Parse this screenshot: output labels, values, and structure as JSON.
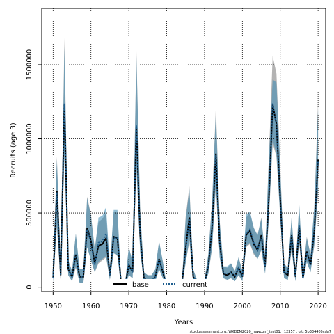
{
  "chart_data": {
    "type": "line",
    "xlabel": "Years",
    "ylabel": "Recruits (age 3)",
    "xlim": [
      1947,
      2022
    ],
    "ylim": [
      -30000,
      1880000
    ],
    "x_ticks": [
      1950,
      1960,
      1970,
      1980,
      1990,
      2000,
      2010,
      2020
    ],
    "y_ticks": [
      0,
      500000,
      1000000,
      1500000
    ],
    "x_tick_labels": [
      "1950",
      "1960",
      "1970",
      "1980",
      "1990",
      "2000",
      "2010",
      "2020"
    ],
    "y_tick_labels": [
      "0",
      "500000",
      "1000000",
      "1500000"
    ],
    "grid": "dotted",
    "legend_position": "bottom-center",
    "x": [
      1950,
      1951,
      1952,
      1953,
      1954,
      1955,
      1956,
      1957,
      1958,
      1959,
      1960,
      1961,
      1962,
      1963,
      1964,
      1965,
      1966,
      1967,
      1968,
      1969,
      1970,
      1971,
      1972,
      1973,
      1974,
      1975,
      1976,
      1977,
      1978,
      1979,
      1980,
      1981,
      1982,
      1983,
      1984,
      1985,
      1986,
      1987,
      1988,
      1989,
      1990,
      1991,
      1992,
      1993,
      1994,
      1995,
      1996,
      1997,
      1998,
      1999,
      2000,
      2001,
      2002,
      2003,
      2004,
      2005,
      2006,
      2007,
      2008,
      2009,
      2010,
      2011,
      2012,
      2013,
      2014,
      2015,
      2016,
      2017,
      2018,
      2019,
      2020
    ],
    "series": [
      {
        "name": "base",
        "color": "#000000",
        "style": "solid",
        "values": [
          60000,
          650000,
          80000,
          1230000,
          120000,
          70000,
          220000,
          70000,
          70000,
          400000,
          310000,
          160000,
          280000,
          290000,
          330000,
          80000,
          340000,
          330000,
          10000,
          10000,
          150000,
          100000,
          1080000,
          350000,
          60000,
          40000,
          40000,
          70000,
          190000,
          100000,
          5000,
          5000,
          10000,
          5000,
          10000,
          260000,
          470000,
          70000,
          30000,
          20000,
          30000,
          140000,
          400000,
          900000,
          300000,
          90000,
          80000,
          100000,
          70000,
          130000,
          70000,
          350000,
          380000,
          290000,
          250000,
          350000,
          140000,
          600000,
          1230000,
          1100000,
          600000,
          100000,
          80000,
          350000,
          70000,
          410000,
          60000,
          240000,
          150000,
          380000,
          860000
        ],
        "band_low": [
          30000,
          400000,
          40000,
          880000,
          80000,
          40000,
          130000,
          30000,
          30000,
          270000,
          180000,
          100000,
          160000,
          180000,
          200000,
          50000,
          230000,
          210000,
          5000,
          5000,
          80000,
          60000,
          800000,
          240000,
          40000,
          20000,
          20000,
          40000,
          120000,
          60000,
          2000,
          2000,
          5000,
          2000,
          5000,
          160000,
          310000,
          40000,
          15000,
          10000,
          15000,
          90000,
          260000,
          680000,
          200000,
          60000,
          50000,
          60000,
          40000,
          80000,
          40000,
          270000,
          290000,
          220000,
          190000,
          250000,
          90000,
          460000,
          970000,
          880000,
          470000,
          60000,
          50000,
          250000,
          40000,
          300000,
          40000,
          170000,
          100000,
          280000,
          650000
        ],
        "band_high": [
          100000,
          880000,
          140000,
          1680000,
          180000,
          110000,
          360000,
          120000,
          120000,
          610000,
          490000,
          260000,
          440000,
          460000,
          500000,
          130000,
          510000,
          500000,
          20000,
          20000,
          270000,
          170000,
          1590000,
          520000,
          100000,
          80000,
          80000,
          120000,
          310000,
          170000,
          10000,
          10000,
          20000,
          10000,
          20000,
          470000,
          680000,
          120000,
          50000,
          40000,
          50000,
          220000,
          580000,
          1220000,
          450000,
          140000,
          130000,
          160000,
          110000,
          200000,
          110000,
          470000,
          500000,
          400000,
          350000,
          470000,
          220000,
          880000,
          1560000,
          1440000,
          820000,
          160000,
          120000,
          470000,
          110000,
          560000,
          100000,
          340000,
          220000,
          540000,
          1260000
        ]
      },
      {
        "name": "current",
        "color": "#1f5f8f",
        "style": "dotted",
        "values": [
          60000,
          640000,
          80000,
          1240000,
          120000,
          70000,
          220000,
          70000,
          70000,
          390000,
          300000,
          150000,
          300000,
          310000,
          360000,
          80000,
          330000,
          330000,
          10000,
          10000,
          150000,
          100000,
          1090000,
          340000,
          60000,
          40000,
          40000,
          70000,
          190000,
          100000,
          5000,
          5000,
          10000,
          5000,
          10000,
          250000,
          460000,
          70000,
          30000,
          20000,
          30000,
          140000,
          400000,
          890000,
          300000,
          90000,
          90000,
          100000,
          70000,
          130000,
          70000,
          360000,
          390000,
          300000,
          250000,
          340000,
          140000,
          600000,
          1240000,
          1090000,
          590000,
          100000,
          90000,
          350000,
          70000,
          420000,
          60000,
          230000,
          150000,
          390000,
          850000
        ],
        "band_low": [
          30000,
          420000,
          40000,
          900000,
          80000,
          40000,
          140000,
          30000,
          30000,
          270000,
          180000,
          100000,
          170000,
          190000,
          210000,
          50000,
          230000,
          210000,
          5000,
          5000,
          80000,
          60000,
          820000,
          240000,
          40000,
          20000,
          20000,
          40000,
          120000,
          60000,
          2000,
          2000,
          5000,
          2000,
          5000,
          160000,
          320000,
          40000,
          15000,
          10000,
          15000,
          90000,
          270000,
          700000,
          200000,
          60000,
          50000,
          60000,
          40000,
          80000,
          40000,
          280000,
          300000,
          230000,
          190000,
          250000,
          90000,
          480000,
          990000,
          900000,
          480000,
          60000,
          50000,
          260000,
          40000,
          310000,
          40000,
          170000,
          100000,
          290000,
          660000
        ],
        "band_high": [
          100000,
          860000,
          130000,
          1620000,
          180000,
          110000,
          360000,
          120000,
          120000,
          600000,
          480000,
          250000,
          470000,
          480000,
          540000,
          130000,
          520000,
          520000,
          20000,
          20000,
          270000,
          170000,
          1560000,
          510000,
          100000,
          80000,
          80000,
          120000,
          310000,
          170000,
          10000,
          10000,
          20000,
          10000,
          20000,
          450000,
          660000,
          120000,
          50000,
          40000,
          50000,
          220000,
          570000,
          1180000,
          440000,
          140000,
          140000,
          160000,
          110000,
          200000,
          110000,
          490000,
          510000,
          400000,
          350000,
          460000,
          220000,
          860000,
          1400000,
          1380000,
          800000,
          160000,
          130000,
          470000,
          110000,
          560000,
          100000,
          330000,
          220000,
          540000,
          1200000
        ]
      }
    ],
    "band_color_base": "#999999",
    "band_color_current": "#3b8ab5",
    "footer": "stockassessment.org, WKDEM2020_newconf_test01, r12357 , git: 5b334405cda7"
  }
}
